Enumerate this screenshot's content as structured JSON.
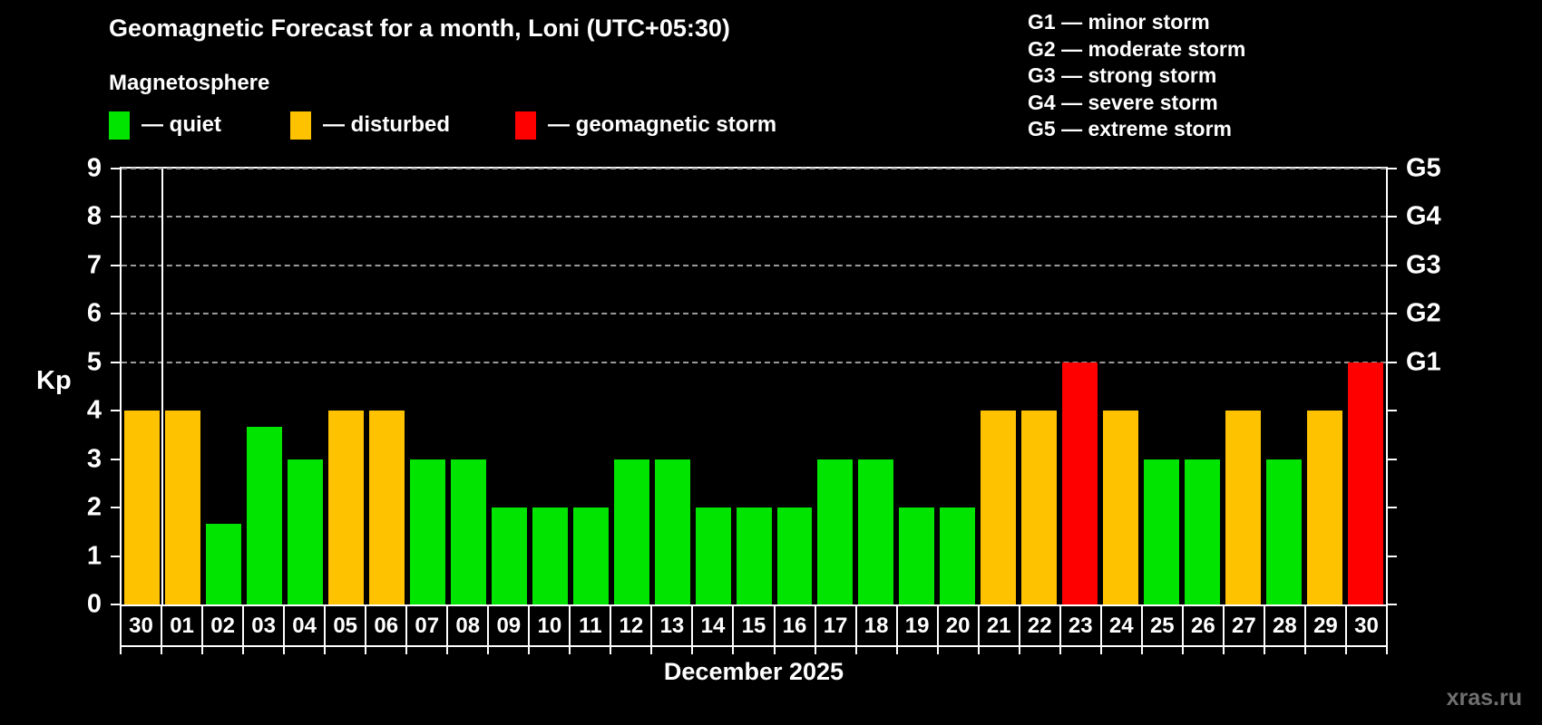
{
  "header": {
    "title": "Geomagnetic Forecast for a month, Loni (UTC+05:30)",
    "subtitle": "Magnetosphere"
  },
  "legend": {
    "items": [
      {
        "key": "quiet",
        "label": "— quiet"
      },
      {
        "key": "disturbed",
        "label": "— disturbed"
      },
      {
        "key": "storm",
        "label": "— geomagnetic storm"
      }
    ]
  },
  "g_legend": {
    "items": [
      "G1 — minor storm",
      "G2 — moderate storm",
      "G3 — strong storm",
      "G4 — severe storm",
      "G5 — extreme storm"
    ]
  },
  "watermark": "xras.ru",
  "chart_data": {
    "type": "bar",
    "title": "Geomagnetic Forecast for a month, Loni (UTC+05:30)",
    "subtitle": "Magnetosphere",
    "xlabel": "December 2025",
    "ylabel": "Kp",
    "ylim": [
      0,
      9
    ],
    "yticks": [
      0,
      1,
      2,
      3,
      4,
      5,
      6,
      7,
      8,
      9
    ],
    "gridlines_at_kp": [
      5,
      6,
      7,
      8,
      9
    ],
    "grid": "horizontal dashed at storm levels only",
    "legend_position": "top-left",
    "right_axis_labels": [
      {
        "kp": 5,
        "label": "G1"
      },
      {
        "kp": 6,
        "label": "G2"
      },
      {
        "kp": 7,
        "label": "G3"
      },
      {
        "kp": 8,
        "label": "G4"
      },
      {
        "kp": 9,
        "label": "G5"
      }
    ],
    "categories": [
      "30",
      "01",
      "02",
      "03",
      "04",
      "05",
      "06",
      "07",
      "08",
      "09",
      "10",
      "11",
      "12",
      "13",
      "14",
      "15",
      "16",
      "17",
      "18",
      "19",
      "20",
      "21",
      "22",
      "23",
      "24",
      "25",
      "26",
      "27",
      "28",
      "29",
      "30"
    ],
    "values": [
      4,
      4,
      1.67,
      3.67,
      3,
      4,
      4,
      3,
      3,
      2,
      2,
      2,
      3,
      3,
      2,
      2,
      2,
      3,
      3,
      2,
      2,
      4,
      4,
      5,
      4,
      3,
      3,
      4,
      3,
      4,
      5
    ],
    "statuses": [
      "disturbed",
      "disturbed",
      "quiet",
      "quiet",
      "quiet",
      "disturbed",
      "disturbed",
      "quiet",
      "quiet",
      "quiet",
      "quiet",
      "quiet",
      "quiet",
      "quiet",
      "quiet",
      "quiet",
      "quiet",
      "quiet",
      "quiet",
      "quiet",
      "quiet",
      "disturbed",
      "disturbed",
      "storm",
      "disturbed",
      "quiet",
      "quiet",
      "disturbed",
      "quiet",
      "disturbed",
      "storm"
    ],
    "colors": {
      "quiet": "#00e400",
      "disturbed": "#ffc200",
      "storm": "#ff0000"
    },
    "axis_color": "#ffffff",
    "gridline_color": "#9a9a9a",
    "background": "#000000",
    "month_separator_after_index": 0
  }
}
